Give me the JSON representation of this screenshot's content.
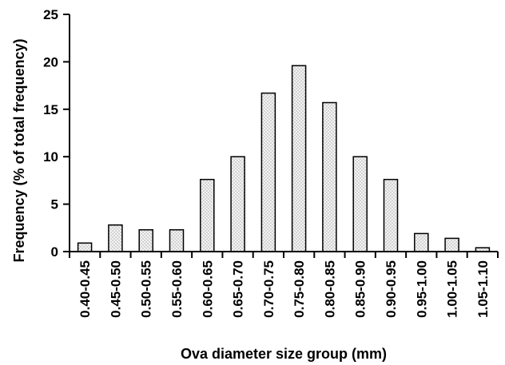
{
  "chart_data": {
    "type": "bar",
    "title": "",
    "xlabel": "Ova diameter size group (mm)",
    "ylabel": "Frequency (% of total frequency)",
    "ylim": [
      0,
      25
    ],
    "yticks": [
      0,
      5,
      10,
      15,
      20,
      25
    ],
    "categories": [
      "0.40-0.45",
      "0.45-0.50",
      "0.50-0.55",
      "0.55-0.60",
      "0.60-0.65",
      "0.65-0.70",
      "0.70-0.75",
      "0.75-0.80",
      "0.80-0.85",
      "0.85-0.90",
      "0.90-0.95",
      "0.95-1.00",
      "1.00-1.05",
      "1.05-1.10"
    ],
    "values": [
      0.9,
      2.8,
      2.3,
      2.3,
      7.6,
      10.0,
      16.7,
      19.6,
      15.7,
      10.0,
      7.6,
      1.9,
      1.4,
      0.4
    ],
    "grid": false,
    "legend": "none",
    "bar_fill": "#e4e4e4",
    "bar_stroke": "#000000"
  }
}
